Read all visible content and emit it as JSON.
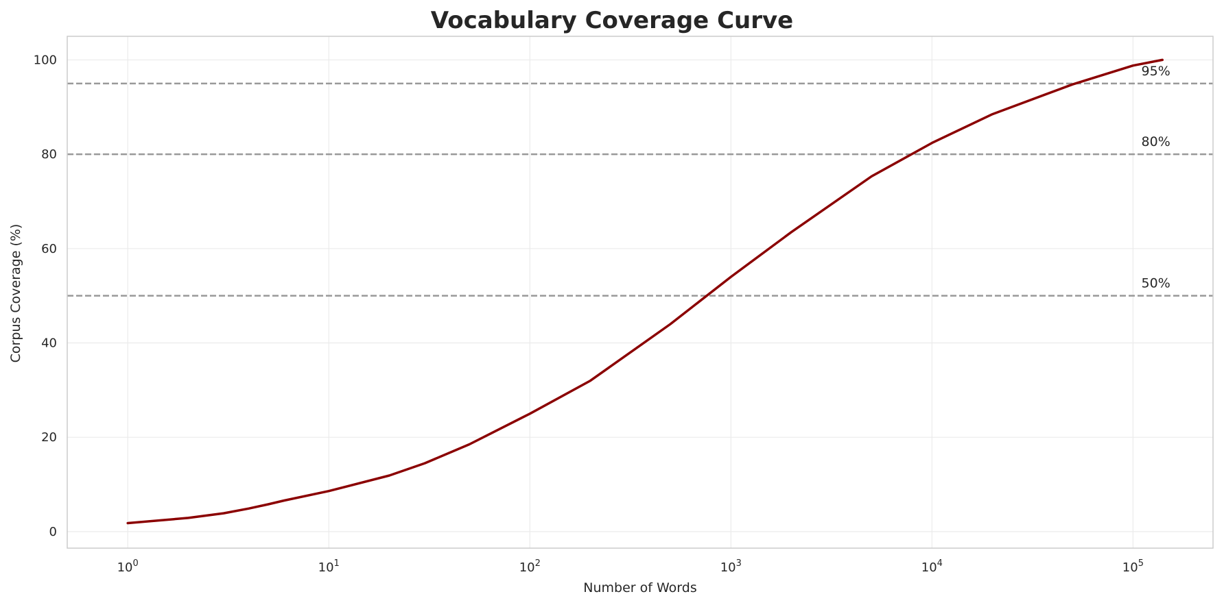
{
  "chart_data": {
    "type": "line",
    "title": "Vocabulary Coverage Curve",
    "xlabel": "Number of Words",
    "ylabel": "Corpus Coverage (%)",
    "x_scale": "log",
    "xlim": [
      0.5,
      250000
    ],
    "ylim": [
      -3.5,
      105
    ],
    "grid": true,
    "x_ticks": [
      {
        "value": 1,
        "base": "10",
        "exp": "0"
      },
      {
        "value": 10,
        "base": "10",
        "exp": "1"
      },
      {
        "value": 100,
        "base": "10",
        "exp": "2"
      },
      {
        "value": 1000,
        "base": "10",
        "exp": "3"
      },
      {
        "value": 10000,
        "base": "10",
        "exp": "4"
      },
      {
        "value": 100000,
        "base": "10",
        "exp": "5"
      }
    ],
    "y_ticks": [
      0,
      20,
      40,
      60,
      80,
      100
    ],
    "series": [
      {
        "color": "#8b0000",
        "x": [
          1,
          2,
          3,
          4,
          5,
          6,
          10,
          20,
          30,
          50,
          100,
          200,
          500,
          1000,
          2000,
          5000,
          10000,
          20000,
          50000,
          100000,
          140000
        ],
        "y": [
          1.8,
          2.9,
          3.9,
          4.9,
          5.8,
          6.6,
          8.6,
          11.9,
          14.5,
          18.5,
          25,
          32,
          44,
          54,
          63.5,
          75.3,
          82.4,
          88.5,
          94.8,
          98.8,
          100
        ]
      }
    ],
    "reference_lines": [
      {
        "y": 95,
        "label": "95%",
        "color": "#999999"
      },
      {
        "y": 80,
        "label": "80%",
        "color": "#999999"
      },
      {
        "y": 50,
        "label": "50%",
        "color": "#999999"
      }
    ]
  }
}
